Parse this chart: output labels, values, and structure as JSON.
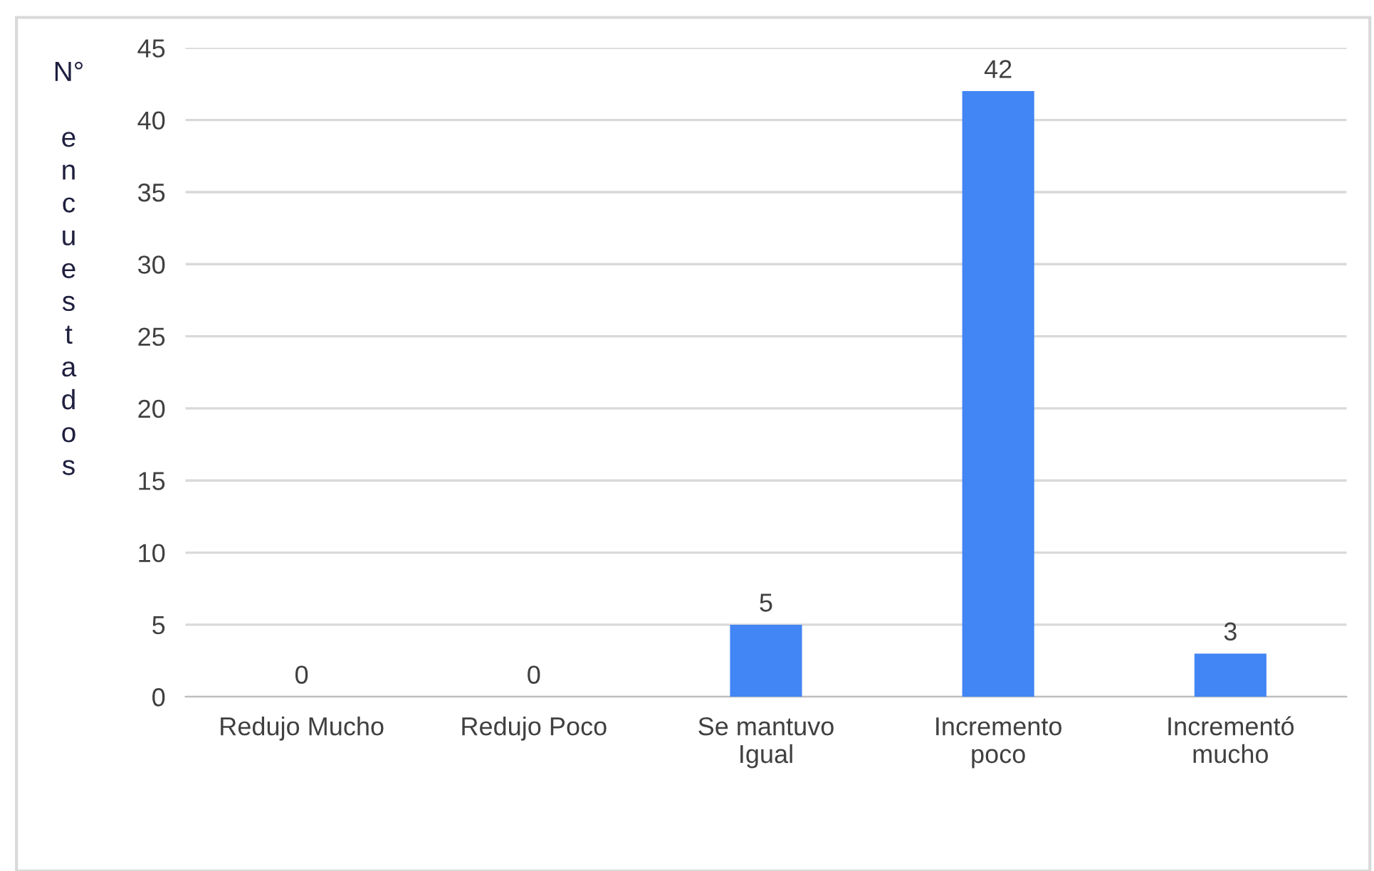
{
  "chart_data": {
    "type": "bar",
    "ylabel": "N° encuestados",
    "categories": [
      "Redujo Mucho",
      "Redujo Poco",
      "Se mantuvo\nIgual",
      "Incremento\npoco",
      "Incrementó\nmucho"
    ],
    "values": [
      0,
      0,
      5,
      42,
      3
    ],
    "color": "#4285f4",
    "ylim": [
      0,
      45
    ],
    "yticks": [
      0,
      5,
      10,
      15,
      20,
      25,
      30,
      35,
      40,
      45
    ],
    "grid": "y",
    "data_labels": true
  }
}
